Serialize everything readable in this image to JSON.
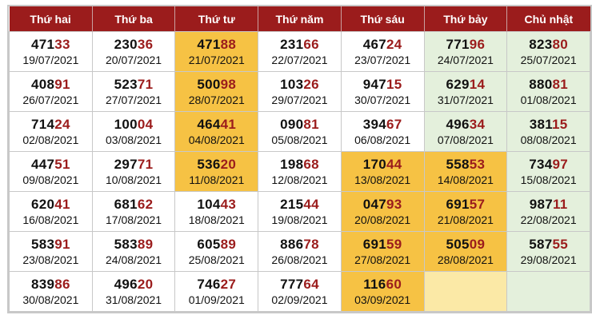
{
  "headers": [
    "Thứ hai",
    "Thứ ba",
    "Thứ tư",
    "Thứ năm",
    "Thứ sáu",
    "Thứ bảy",
    "Chủ nhật"
  ],
  "colors": {
    "header_bg": "#9b1c1c",
    "highlight_orange": "#f6c244",
    "weekend_green": "#e4f0dc",
    "empty_pale_yellow": "#fbe9a6",
    "number_tail": "#9b1c1c"
  },
  "rows": [
    [
      {
        "head": "471",
        "tail": "33",
        "date": "19/07/2021",
        "style": ""
      },
      {
        "head": "230",
        "tail": "36",
        "date": "20/07/2021",
        "style": ""
      },
      {
        "head": "471",
        "tail": "88",
        "date": "21/07/2021",
        "style": "c-orange"
      },
      {
        "head": "231",
        "tail": "66",
        "date": "22/07/2021",
        "style": ""
      },
      {
        "head": "467",
        "tail": "24",
        "date": "23/07/2021",
        "style": ""
      },
      {
        "head": "771",
        "tail": "96",
        "date": "24/07/2021",
        "style": "c-green"
      },
      {
        "head": "823",
        "tail": "80",
        "date": "25/07/2021",
        "style": "c-green"
      }
    ],
    [
      {
        "head": "408",
        "tail": "91",
        "date": "26/07/2021",
        "style": ""
      },
      {
        "head": "523",
        "tail": "71",
        "date": "27/07/2021",
        "style": ""
      },
      {
        "head": "500",
        "tail": "98",
        "date": "28/07/2021",
        "style": "c-orange"
      },
      {
        "head": "103",
        "tail": "26",
        "date": "29/07/2021",
        "style": ""
      },
      {
        "head": "947",
        "tail": "15",
        "date": "30/07/2021",
        "style": ""
      },
      {
        "head": "629",
        "tail": "14",
        "date": "31/07/2021",
        "style": "c-green"
      },
      {
        "head": "880",
        "tail": "81",
        "date": "01/08/2021",
        "style": "c-green"
      }
    ],
    [
      {
        "head": "714",
        "tail": "24",
        "date": "02/08/2021",
        "style": ""
      },
      {
        "head": "100",
        "tail": "04",
        "date": "03/08/2021",
        "style": ""
      },
      {
        "head": "464",
        "tail": "41",
        "date": "04/08/2021",
        "style": "c-orange"
      },
      {
        "head": "090",
        "tail": "81",
        "date": "05/08/2021",
        "style": ""
      },
      {
        "head": "394",
        "tail": "67",
        "date": "06/08/2021",
        "style": ""
      },
      {
        "head": "496",
        "tail": "34",
        "date": "07/08/2021",
        "style": "c-green"
      },
      {
        "head": "381",
        "tail": "15",
        "date": "08/08/2021",
        "style": "c-green"
      }
    ],
    [
      {
        "head": "447",
        "tail": "51",
        "date": "09/08/2021",
        "style": ""
      },
      {
        "head": "297",
        "tail": "71",
        "date": "10/08/2021",
        "style": ""
      },
      {
        "head": "536",
        "tail": "20",
        "date": "11/08/2021",
        "style": "c-orange"
      },
      {
        "head": "198",
        "tail": "68",
        "date": "12/08/2021",
        "style": ""
      },
      {
        "head": "170",
        "tail": "44",
        "date": "13/08/2021",
        "style": "c-orange"
      },
      {
        "head": "558",
        "tail": "53",
        "date": "14/08/2021",
        "style": "c-orange"
      },
      {
        "head": "734",
        "tail": "97",
        "date": "15/08/2021",
        "style": "c-green"
      }
    ],
    [
      {
        "head": "620",
        "tail": "41",
        "date": "16/08/2021",
        "style": ""
      },
      {
        "head": "681",
        "tail": "62",
        "date": "17/08/2021",
        "style": ""
      },
      {
        "head": "104",
        "tail": "43",
        "date": "18/08/2021",
        "style": ""
      },
      {
        "head": "215",
        "tail": "44",
        "date": "19/08/2021",
        "style": ""
      },
      {
        "head": "047",
        "tail": "93",
        "date": "20/08/2021",
        "style": "c-orange"
      },
      {
        "head": "691",
        "tail": "57",
        "date": "21/08/2021",
        "style": "c-orange"
      },
      {
        "head": "987",
        "tail": "11",
        "date": "22/08/2021",
        "style": "c-green"
      }
    ],
    [
      {
        "head": "583",
        "tail": "91",
        "date": "23/08/2021",
        "style": ""
      },
      {
        "head": "583",
        "tail": "89",
        "date": "24/08/2021",
        "style": ""
      },
      {
        "head": "605",
        "tail": "89",
        "date": "25/08/2021",
        "style": ""
      },
      {
        "head": "886",
        "tail": "78",
        "date": "26/08/2021",
        "style": ""
      },
      {
        "head": "691",
        "tail": "59",
        "date": "27/08/2021",
        "style": "c-orange"
      },
      {
        "head": "505",
        "tail": "09",
        "date": "28/08/2021",
        "style": "c-orange"
      },
      {
        "head": "587",
        "tail": "55",
        "date": "29/08/2021",
        "style": "c-green"
      }
    ],
    [
      {
        "head": "839",
        "tail": "86",
        "date": "30/08/2021",
        "style": ""
      },
      {
        "head": "496",
        "tail": "20",
        "date": "31/08/2021",
        "style": ""
      },
      {
        "head": "746",
        "tail": "27",
        "date": "01/09/2021",
        "style": ""
      },
      {
        "head": "777",
        "tail": "64",
        "date": "02/09/2021",
        "style": ""
      },
      {
        "head": "116",
        "tail": "60",
        "date": "03/09/2021",
        "style": "c-orange"
      },
      {
        "head": "",
        "tail": "",
        "date": "",
        "style": "c-pale"
      },
      {
        "head": "",
        "tail": "",
        "date": "",
        "style": "c-green"
      }
    ]
  ]
}
